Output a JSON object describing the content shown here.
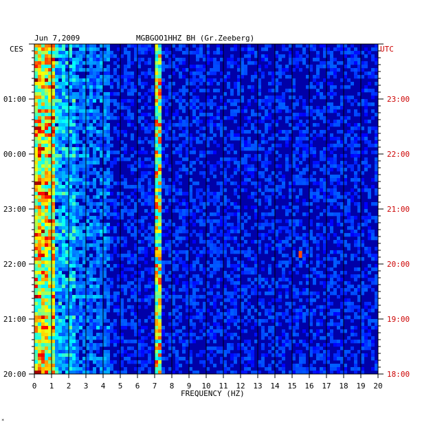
{
  "header": {
    "date": "Jun 7,2009",
    "station": "MGBGOO1HHZ BH (Gr.Zeeberg)"
  },
  "left_zone_label": "CES",
  "right_zone_label": "UTC",
  "corner_mark": "*",
  "colors": {
    "background_low": "#0000a8",
    "left_time_labels": "#000000",
    "right_time_labels": "#cc0000",
    "grid": "#000000"
  },
  "chart_data": {
    "type": "heatmap",
    "title": "",
    "xlabel": "FREQUENCY (HZ)",
    "ylabel": "",
    "x_ticks": [
      "0",
      "1",
      "2",
      "3",
      "4",
      "5",
      "6",
      "7",
      "8",
      "9",
      "10",
      "11",
      "12",
      "13",
      "14",
      "15",
      "16",
      "17",
      "18",
      "19",
      "20"
    ],
    "xlim": [
      0,
      20
    ],
    "left_time_ticks": [
      "01:00",
      "00:00",
      "23:00",
      "22:00",
      "21:00",
      "20:00"
    ],
    "right_time_ticks": [
      "23:00",
      "22:00",
      "21:00",
      "20:00",
      "19:00",
      "18:00"
    ],
    "colormap": "jet",
    "features": [
      {
        "name": "microseism band",
        "freq_range": [
          0.1,
          1.2
        ],
        "intensity": "high"
      },
      {
        "name": "broadband energy",
        "freq_range": [
          1.2,
          4.5
        ],
        "intensity": "medium"
      },
      {
        "name": "line ~7 Hz",
        "freq_range": [
          7.0,
          7.5
        ],
        "intensity": "high"
      },
      {
        "name": "transient spot",
        "freq_range": [
          15.3,
          15.9
        ],
        "intensity": "high"
      }
    ]
  }
}
